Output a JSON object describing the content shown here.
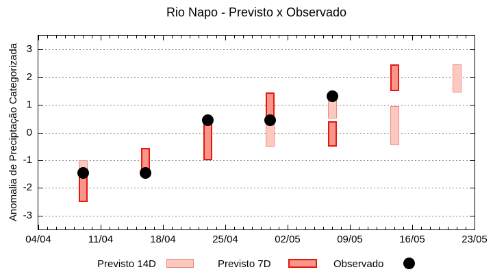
{
  "title": "Rio Napo - Previsto x Observado",
  "axes": {
    "ylabel": "Anomalia de Preciptação Categorizada",
    "x_tick_labels": [
      "04/04",
      "11/04",
      "18/04",
      "25/04",
      "02/05",
      "09/05",
      "16/05",
      "23/05"
    ],
    "y_tick_labels": [
      "3",
      "2",
      "1",
      "0",
      "-1",
      "-2",
      "-3"
    ],
    "y_tick_values": [
      3,
      2,
      1,
      0,
      -1,
      -2,
      -3
    ]
  },
  "colors": {
    "background": "#ffffff",
    "axis": "#000000",
    "grid": "#7f7f7f",
    "previsto14_fill": "#FBC9C0",
    "previsto14_border": "#F08A7E",
    "previsto7_fill": "#F9968C",
    "previsto7_border": "#E6170C",
    "observado": "#000000"
  },
  "legend": {
    "items": [
      {
        "label": "Previsto 14D",
        "swatch": "box-light"
      },
      {
        "label": "Previsto 7D",
        "swatch": "box-dark"
      },
      {
        "label": "Observado",
        "swatch": "dot"
      }
    ]
  },
  "chart_data": {
    "type": "bar",
    "subtype": "range-bars-with-observed-points",
    "title": "Rio Napo - Previsto x Observado",
    "xlabel": "",
    "ylabel": "Anomalia de Preciptação Categorizada",
    "ylim": [
      -3.5,
      3.5
    ],
    "grid": "horizontal-dotted",
    "legend_position": "bottom-outside",
    "x_axis": {
      "start_label": "04/04",
      "end_label": "23/05",
      "total_days": 49,
      "major_tick_every_days": 7,
      "minor_tick_every_days": 1,
      "major_tick_labels": [
        "04/04",
        "11/04",
        "18/04",
        "25/04",
        "02/05",
        "09/05",
        "16/05",
        "23/05"
      ]
    },
    "series": [
      {
        "name": "Previsto 14D",
        "type": "range-bar",
        "fill": "#FBC9C0",
        "border": "#F08A7E",
        "points": [
          {
            "date": "09/04",
            "day": 5,
            "low": -2.4,
            "high": -1.0
          },
          {
            "date": "30/04",
            "day": 26,
            "low": -0.5,
            "high": 0.45
          },
          {
            "date": "07/05",
            "day": 33,
            "low": 0.5,
            "high": 1.45
          },
          {
            "date": "14/05",
            "day": 40,
            "low": -0.45,
            "high": 0.95
          },
          {
            "date": "21/05",
            "day": 47,
            "low": 1.45,
            "high": 2.45
          }
        ]
      },
      {
        "name": "Previsto 7D",
        "type": "range-bar",
        "fill": "#F9968C",
        "border": "#E6170C",
        "points": [
          {
            "date": "09/04",
            "day": 5,
            "low": -2.5,
            "high": -1.3
          },
          {
            "date": "16/04",
            "day": 12,
            "low": -1.35,
            "high": -0.55
          },
          {
            "date": "23/04",
            "day": 19,
            "low": -1.0,
            "high": 0.45
          },
          {
            "date": "30/04",
            "day": 26,
            "low": 0.45,
            "high": 1.45
          },
          {
            "date": "07/05",
            "day": 33,
            "low": -0.5,
            "high": 0.4
          },
          {
            "date": "14/05",
            "day": 40,
            "low": 1.5,
            "high": 2.45
          }
        ]
      },
      {
        "name": "Observado",
        "type": "scatter",
        "fill": "#000000",
        "points": [
          {
            "date": "09/04",
            "day": 5,
            "value": -1.45
          },
          {
            "date": "16/04",
            "day": 12,
            "value": -1.45
          },
          {
            "date": "23/04",
            "day": 19,
            "value": 0.45
          },
          {
            "date": "30/04",
            "day": 26,
            "value": 0.45
          },
          {
            "date": "07/05",
            "day": 33,
            "value": 1.3
          }
        ]
      }
    ]
  }
}
